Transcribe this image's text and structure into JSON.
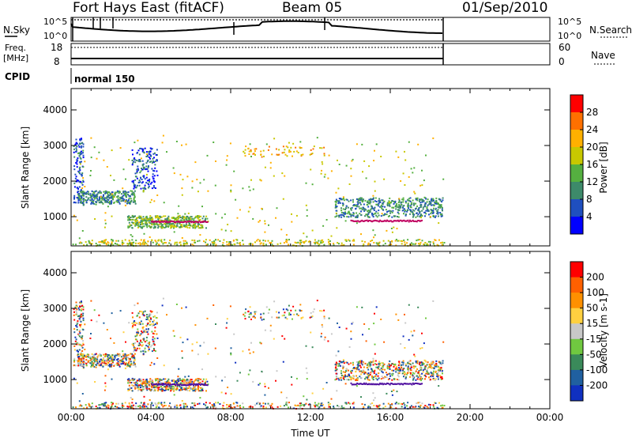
{
  "header": {
    "station": "Fort Hays East (fitACF)",
    "beam": "Beam 05",
    "date": "01/Sep/2010"
  },
  "strip_panels": {
    "nsky": {
      "label": "N.Sky",
      "ticks": [
        "10^5",
        "10^0"
      ],
      "right_label": "N.Search",
      "right_ticks": [
        "10^5",
        "10^0"
      ]
    },
    "freq": {
      "label_line1": "Freq.",
      "label_line2": "[MHz]",
      "ticks": [
        "18",
        "8"
      ],
      "right_label": "Nave",
      "right_ticks": [
        "60",
        "0"
      ]
    },
    "cpid": {
      "label": "CPID",
      "value": "normal 150"
    }
  },
  "chart_data": [
    {
      "type": "heatmap",
      "name": "power",
      "xlabel": "",
      "ylabel": "Slant Range [km]",
      "xlim": [
        0,
        24
      ],
      "ylim": [
        180,
        4600
      ],
      "y_ticks": [
        "4000",
        "3000",
        "2000",
        "1000"
      ],
      "colorbar_label": "Power [dB]",
      "colorbar_ticks": [
        "28",
        "24",
        "20",
        "16",
        "12",
        "8",
        "4"
      ],
      "data_end_hour": 18.7,
      "scatter_regions": [
        {
          "x": [
            0.1,
            0.5
          ],
          "y": [
            1300,
            3300
          ]
        },
        {
          "x": [
            0.3,
            3.2
          ],
          "y": [
            1400,
            1700
          ]
        },
        {
          "x": [
            3.2,
            4.2
          ],
          "y": [
            1800,
            2900
          ]
        },
        {
          "x": [
            2.8,
            6.8
          ],
          "y": [
            700,
            1000
          ]
        },
        {
          "x": [
            13.2,
            18.6
          ],
          "y": [
            1000,
            1500
          ]
        },
        {
          "x": [
            0,
            18.7
          ],
          "y": [
            200,
            350
          ]
        }
      ]
    },
    {
      "type": "heatmap",
      "name": "velocity",
      "xlabel": "Time UT",
      "ylabel": "Slant Range [km]",
      "xlim": [
        0,
        24
      ],
      "ylim": [
        180,
        4600
      ],
      "x_ticks": [
        "00:00",
        "04:00",
        "08:00",
        "12:00",
        "16:00",
        "20:00",
        "00:00"
      ],
      "y_ticks": [
        "4000",
        "3000",
        "2000",
        "1000"
      ],
      "colorbar_label": "Velocity [m s-1]",
      "colorbar_ticks": [
        "200",
        "100",
        "50",
        "15",
        "-15",
        "-50",
        "-100",
        "-200"
      ],
      "data_end_hour": 18.7
    }
  ],
  "colors": {
    "power_scale": [
      "#0000ff",
      "#1f4fbf",
      "#3d8a6a",
      "#55b040",
      "#c8c800",
      "#ffb000",
      "#ff7000",
      "#ff0000"
    ],
    "velocity_scale": [
      "#1030c0",
      "#2060a0",
      "#3a8a5a",
      "#70c840",
      "#c8c8c8",
      "#ffd040",
      "#ff9000",
      "#ff6000",
      "#ff0000"
    ]
  }
}
